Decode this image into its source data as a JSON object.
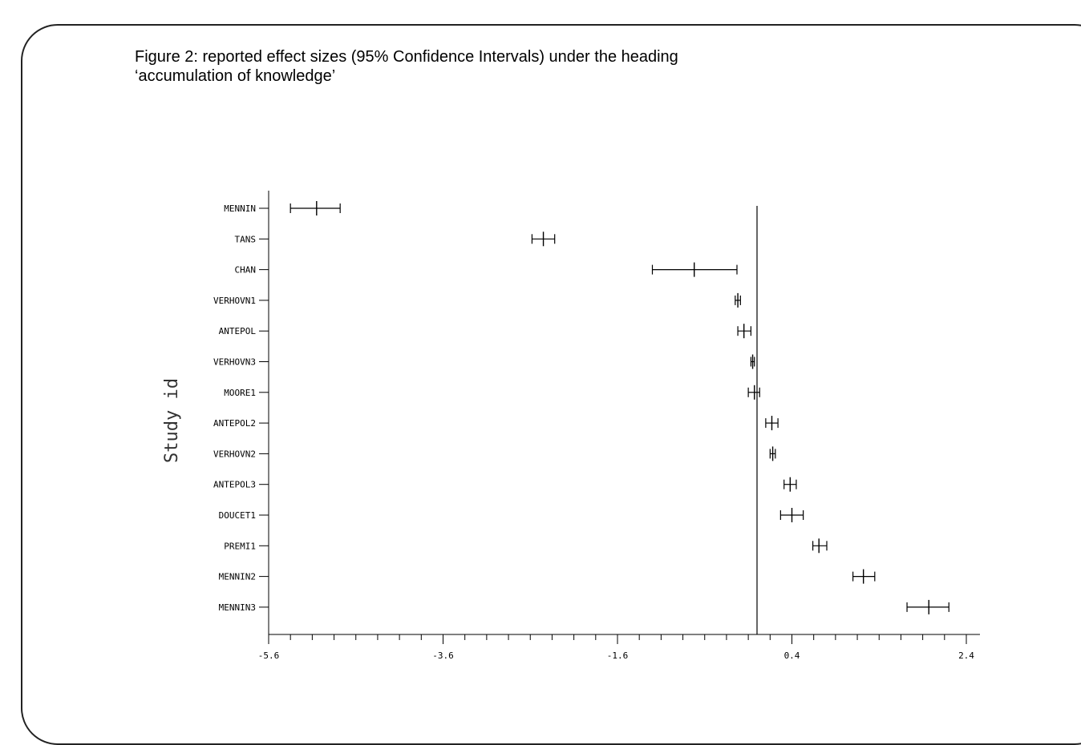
{
  "caption": {
    "line1": "Figure 2: reported effect sizes (95% Confidence Intervals) under the heading",
    "line2": "‘accumulation of knowledge’"
  },
  "chart_data": {
    "type": "forest",
    "ylabel": "Study id",
    "xlim": [
      -5.6,
      2.4
    ],
    "xticks": [
      "-5.6",
      "-3.6",
      "-1.6",
      "0.4",
      "2.4"
    ],
    "reference_line": 0.0,
    "studies": [
      {
        "label": "MENNIN",
        "est": -5.05,
        "lo": -5.35,
        "hi": -4.78
      },
      {
        "label": "TANS",
        "est": -2.45,
        "lo": -2.58,
        "hi": -2.32
      },
      {
        "label": "CHAN",
        "est": -0.72,
        "lo": -1.2,
        "hi": -0.23
      },
      {
        "label": "VERHOVN1",
        "est": -0.22,
        "lo": -0.25,
        "hi": -0.19
      },
      {
        "label": "ANTEPOL",
        "est": -0.15,
        "lo": -0.22,
        "hi": -0.07
      },
      {
        "label": "VERHOVN3",
        "est": -0.05,
        "lo": -0.07,
        "hi": -0.03
      },
      {
        "label": "MOORE1",
        "est": -0.03,
        "lo": -0.1,
        "hi": 0.03
      },
      {
        "label": "ANTEPOL2",
        "est": 0.17,
        "lo": 0.1,
        "hi": 0.24
      },
      {
        "label": "VERHOVN2",
        "est": 0.18,
        "lo": 0.15,
        "hi": 0.21
      },
      {
        "label": "ANTEPOL3",
        "est": 0.38,
        "lo": 0.31,
        "hi": 0.45
      },
      {
        "label": "DOUCET1",
        "est": 0.4,
        "lo": 0.27,
        "hi": 0.53
      },
      {
        "label": "PREMI1",
        "est": 0.71,
        "lo": 0.64,
        "hi": 0.8
      },
      {
        "label": "MENNIN2",
        "est": 1.22,
        "lo": 1.1,
        "hi": 1.35
      },
      {
        "label": "MENNIN3",
        "est": 1.97,
        "lo": 1.72,
        "hi": 2.2
      }
    ]
  }
}
